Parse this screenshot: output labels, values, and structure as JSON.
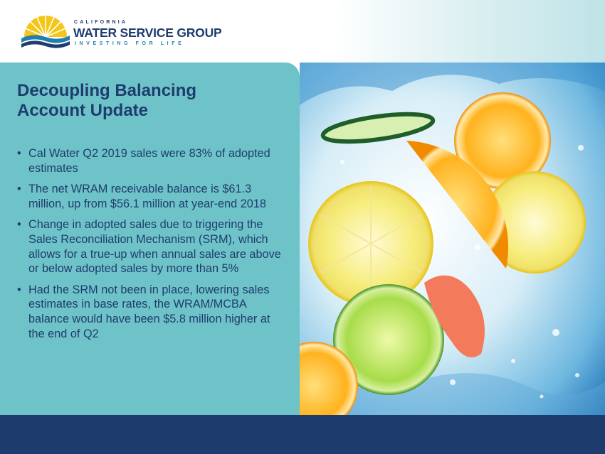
{
  "header": {
    "logo": {
      "top_text": "CALIFORNIA",
      "main_text": "WATER SERVICE GROUP",
      "tagline": "INVESTING FOR LIFE",
      "icon": "sun-over-water-logo-icon"
    }
  },
  "slide": {
    "title_line1": "Decoupling Balancing",
    "title_line2": "Account Update",
    "bullets": [
      "Cal Water Q2 2019 sales were 83% of adopted estimates",
      "The net WRAM receivable balance is $61.3 million, up from $56.1 million at year-end 2018",
      "Change in adopted sales due to triggering the Sales Reconciliation Mechanism (SRM), which allows for a true-up when annual sales are above or below adopted sales by more than 5%",
      "Had the SRM not been in place, lowering sales estimates in base rates, the WRAM/MCBA balance would have been $5.8 million higher at the end of Q2"
    ]
  },
  "photo": {
    "subject": "citrus-slices-splashing-in-water-image"
  },
  "colors": {
    "brand_navy": "#1f3c6e",
    "panel_teal": "#6ec3c8",
    "footer_navy": "#1e3b6e",
    "logo_yellow": "#f5c518",
    "logo_blue": "#1f7fae"
  }
}
